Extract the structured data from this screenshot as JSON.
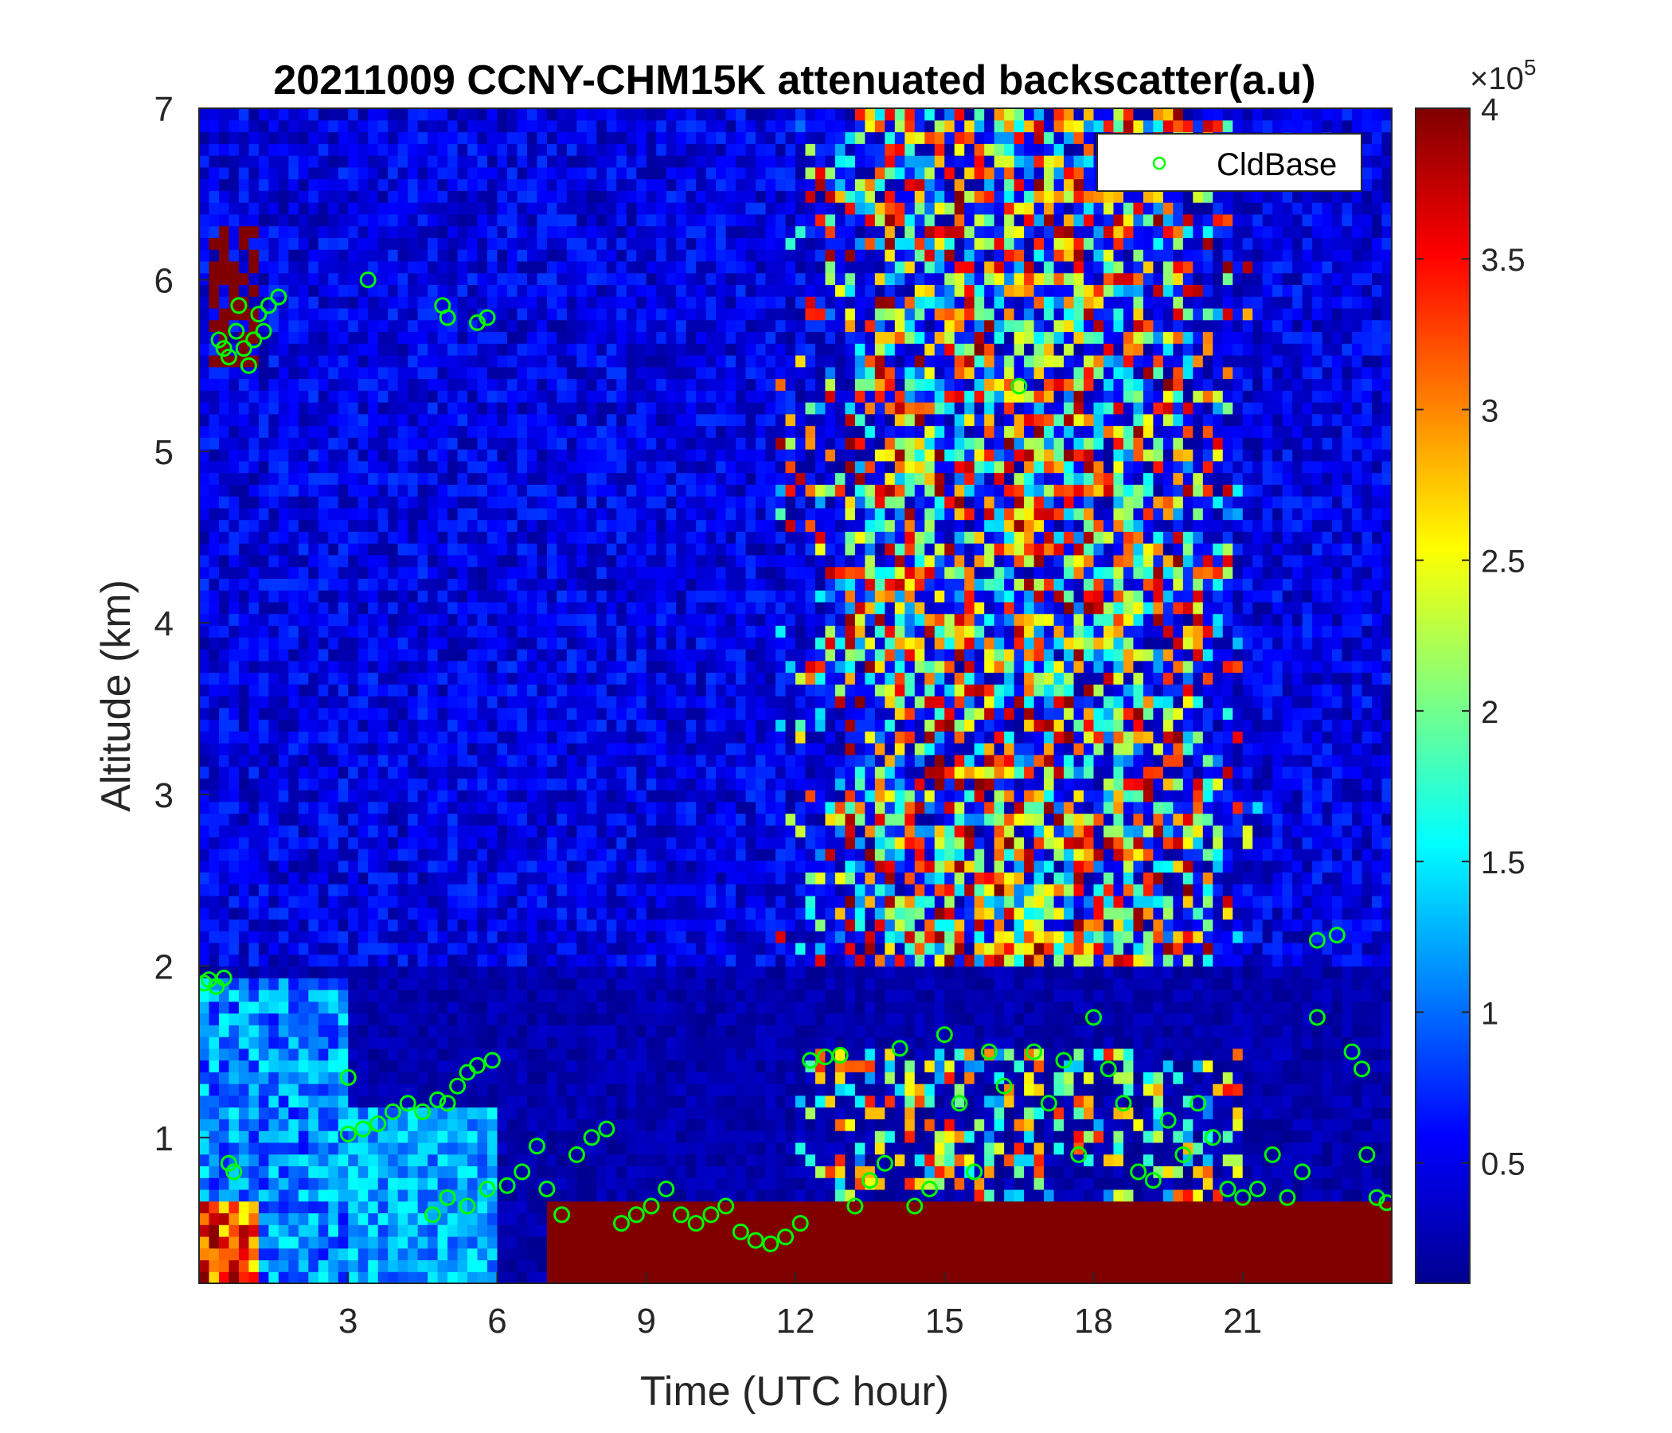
{
  "chart_data": {
    "type": "heatmap",
    "title": "20211009 CCNY-CHM15K attenuated backscatter(a.u)",
    "xlabel": "Time (UTC hour)",
    "ylabel": "Altitude (km)",
    "xlim": [
      0,
      24
    ],
    "ylim": [
      0.15,
      7
    ],
    "x_ticks": [
      3,
      6,
      9,
      12,
      15,
      18,
      21
    ],
    "y_ticks": [
      1,
      2,
      3,
      4,
      5,
      6,
      7
    ],
    "grid": false,
    "colormap": "jet",
    "colorbar": {
      "range": [
        0.1,
        4
      ],
      "ticks": [
        0.5,
        1,
        1.5,
        2,
        2.5,
        3,
        3.5,
        4
      ],
      "tick_labels": [
        "0.5",
        "1",
        "1.5",
        "2",
        "2.5",
        "3",
        "3.5",
        "4"
      ],
      "multiplier_base": "×10",
      "multiplier_exponent": "5"
    },
    "legend": {
      "position": "top-right",
      "entries": [
        {
          "name": "CldBase",
          "marker": "circle",
          "color": "#00ff00"
        }
      ]
    },
    "layers": [
      {
        "name": "noise-background",
        "x_range": [
          0,
          24
        ],
        "y_range": [
          2,
          7
        ],
        "value_range": [
          0.2,
          0.8
        ]
      },
      {
        "name": "upper-aerosol-region",
        "x_range": [
          11.5,
          21.5
        ],
        "y_range": [
          1.0,
          7
        ],
        "value_range": [
          1.0,
          4
        ]
      },
      {
        "name": "night-boundary-layer",
        "x_range": [
          0,
          3
        ],
        "y_range": [
          0.15,
          1.95
        ],
        "value_range": [
          0.6,
          1.6
        ]
      },
      {
        "name": "surface-layer",
        "x_range": [
          7,
          24
        ],
        "y_range": [
          0.15,
          0.6
        ],
        "value": 4
      },
      {
        "name": "cirrus-cloud",
        "x_range": [
          0.2,
          1.2
        ],
        "y_range": [
          5.5,
          6.3
        ],
        "value": 4
      }
    ],
    "series": [
      {
        "name": "CldBase",
        "points": [
          {
            "x": 0.1,
            "y": 1.9
          },
          {
            "x": 0.2,
            "y": 1.92
          },
          {
            "x": 0.35,
            "y": 1.88
          },
          {
            "x": 0.5,
            "y": 1.93
          },
          {
            "x": 0.4,
            "y": 5.65
          },
          {
            "x": 0.5,
            "y": 5.6
          },
          {
            "x": 0.6,
            "y": 5.55
          },
          {
            "x": 0.75,
            "y": 5.7
          },
          {
            "x": 0.8,
            "y": 5.85
          },
          {
            "x": 0.9,
            "y": 5.6
          },
          {
            "x": 1.0,
            "y": 5.5
          },
          {
            "x": 1.1,
            "y": 5.65
          },
          {
            "x": 1.2,
            "y": 5.8
          },
          {
            "x": 1.3,
            "y": 5.7
          },
          {
            "x": 1.4,
            "y": 5.85
          },
          {
            "x": 1.6,
            "y": 5.9
          },
          {
            "x": 0.6,
            "y": 0.85
          },
          {
            "x": 0.7,
            "y": 0.8
          },
          {
            "x": 3.0,
            "y": 1.35
          },
          {
            "x": 3.4,
            "y": 6.0
          },
          {
            "x": 3.0,
            "y": 1.02
          },
          {
            "x": 3.3,
            "y": 1.05
          },
          {
            "x": 3.6,
            "y": 1.08
          },
          {
            "x": 3.9,
            "y": 1.15
          },
          {
            "x": 4.2,
            "y": 1.2
          },
          {
            "x": 4.5,
            "y": 1.15
          },
          {
            "x": 4.8,
            "y": 1.22
          },
          {
            "x": 5.0,
            "y": 1.2
          },
          {
            "x": 4.9,
            "y": 5.85
          },
          {
            "x": 5.0,
            "y": 5.78
          },
          {
            "x": 5.6,
            "y": 5.75
          },
          {
            "x": 5.8,
            "y": 5.78
          },
          {
            "x": 5.2,
            "y": 1.3
          },
          {
            "x": 5.4,
            "y": 1.38
          },
          {
            "x": 5.6,
            "y": 1.42
          },
          {
            "x": 5.9,
            "y": 1.45
          },
          {
            "x": 4.7,
            "y": 0.55
          },
          {
            "x": 5.0,
            "y": 0.65
          },
          {
            "x": 5.4,
            "y": 0.6
          },
          {
            "x": 5.8,
            "y": 0.7
          },
          {
            "x": 6.2,
            "y": 0.72
          },
          {
            "x": 6.5,
            "y": 0.8
          },
          {
            "x": 6.8,
            "y": 0.95
          },
          {
            "x": 7.0,
            "y": 0.7
          },
          {
            "x": 7.3,
            "y": 0.55
          },
          {
            "x": 7.6,
            "y": 0.9
          },
          {
            "x": 7.9,
            "y": 1.0
          },
          {
            "x": 8.2,
            "y": 1.05
          },
          {
            "x": 8.5,
            "y": 0.5
          },
          {
            "x": 8.8,
            "y": 0.55
          },
          {
            "x": 9.1,
            "y": 0.6
          },
          {
            "x": 9.4,
            "y": 0.7
          },
          {
            "x": 9.7,
            "y": 0.55
          },
          {
            "x": 10.0,
            "y": 0.5
          },
          {
            "x": 10.3,
            "y": 0.55
          },
          {
            "x": 10.6,
            "y": 0.6
          },
          {
            "x": 10.9,
            "y": 0.45
          },
          {
            "x": 11.2,
            "y": 0.4
          },
          {
            "x": 11.5,
            "y": 0.38
          },
          {
            "x": 11.8,
            "y": 0.42
          },
          {
            "x": 12.1,
            "y": 0.5
          },
          {
            "x": 12.3,
            "y": 1.45
          },
          {
            "x": 12.6,
            "y": 1.47
          },
          {
            "x": 12.9,
            "y": 1.48
          },
          {
            "x": 13.2,
            "y": 0.6
          },
          {
            "x": 13.5,
            "y": 0.75
          },
          {
            "x": 13.8,
            "y": 0.85
          },
          {
            "x": 14.1,
            "y": 1.52
          },
          {
            "x": 14.4,
            "y": 0.6
          },
          {
            "x": 14.7,
            "y": 0.7
          },
          {
            "x": 15.0,
            "y": 1.6
          },
          {
            "x": 15.3,
            "y": 1.2
          },
          {
            "x": 15.6,
            "y": 0.8
          },
          {
            "x": 15.9,
            "y": 1.5
          },
          {
            "x": 16.2,
            "y": 1.3
          },
          {
            "x": 16.5,
            "y": 5.38
          },
          {
            "x": 16.8,
            "y": 1.5
          },
          {
            "x": 17.1,
            "y": 1.2
          },
          {
            "x": 17.4,
            "y": 1.45
          },
          {
            "x": 17.7,
            "y": 0.9
          },
          {
            "x": 18.0,
            "y": 1.7
          },
          {
            "x": 18.3,
            "y": 1.4
          },
          {
            "x": 18.6,
            "y": 1.2
          },
          {
            "x": 18.9,
            "y": 0.8
          },
          {
            "x": 19.2,
            "y": 0.75
          },
          {
            "x": 19.5,
            "y": 1.1
          },
          {
            "x": 19.8,
            "y": 0.9
          },
          {
            "x": 20.1,
            "y": 1.2
          },
          {
            "x": 20.4,
            "y": 1.0
          },
          {
            "x": 20.7,
            "y": 0.7
          },
          {
            "x": 21.0,
            "y": 0.65
          },
          {
            "x": 21.3,
            "y": 0.7
          },
          {
            "x": 21.6,
            "y": 0.9
          },
          {
            "x": 21.9,
            "y": 0.65
          },
          {
            "x": 22.2,
            "y": 0.8
          },
          {
            "x": 22.5,
            "y": 2.15
          },
          {
            "x": 22.5,
            "y": 1.7
          },
          {
            "x": 22.9,
            "y": 2.18
          },
          {
            "x": 23.2,
            "y": 1.5
          },
          {
            "x": 23.4,
            "y": 1.4
          },
          {
            "x": 23.5,
            "y": 0.9
          },
          {
            "x": 23.7,
            "y": 0.65
          },
          {
            "x": 23.9,
            "y": 0.62
          }
        ]
      }
    ]
  }
}
